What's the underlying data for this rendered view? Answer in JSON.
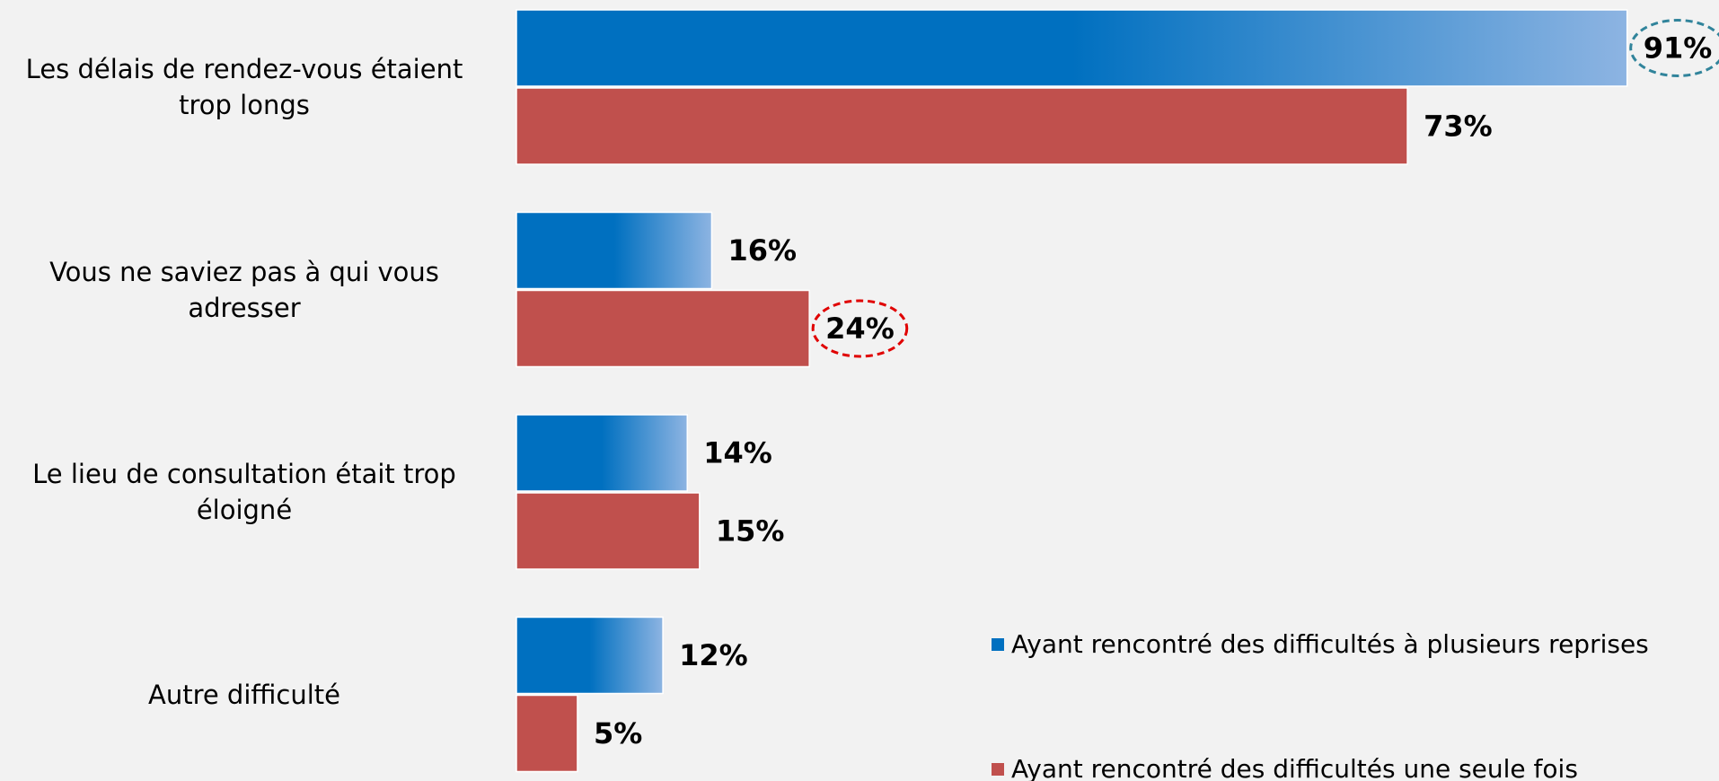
{
  "chart_data": {
    "type": "bar",
    "orientation": "horizontal",
    "categories": [
      "Les délais de rendez-vous étaient trop longs",
      "Vous ne saviez pas à qui vous adresser",
      "Le lieu de consultation était trop éloigné",
      "Autre difficulté"
    ],
    "series": [
      {
        "name": "Ayant rencontré des difficultés à plusieurs reprises",
        "color": "#0070c0",
        "gradient_to": "#8db4e2",
        "values": [
          91,
          16,
          14,
          12
        ],
        "value_labels": [
          "91%",
          "16%",
          "14%",
          "12%"
        ]
      },
      {
        "name": "Ayant rencontré des difficultés une seule fois",
        "color": "#c0504d",
        "values": [
          73,
          24,
          15,
          5
        ],
        "value_labels": [
          "73%",
          "24%",
          "15%",
          "5%"
        ]
      }
    ],
    "circled": [
      {
        "series": 0,
        "index": 0,
        "color": "#31849b"
      },
      {
        "series": 1,
        "index": 1,
        "color": "#e00000"
      }
    ],
    "legend": "bottom-right"
  }
}
